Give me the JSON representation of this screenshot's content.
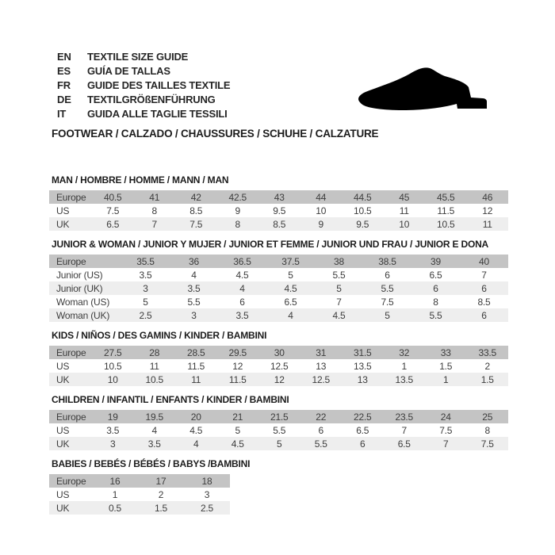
{
  "header": {
    "languages": [
      {
        "code": "EN",
        "text": "TEXTILE SIZE GUIDE"
      },
      {
        "code": "ES",
        "text": "GUÍA DE TALLAS"
      },
      {
        "code": "FR",
        "text": "GUIDE DES TAILLES TEXTILE"
      },
      {
        "code": "DE",
        "text": "TEXTILGRÖßENFÜHRUNG"
      },
      {
        "code": "IT",
        "text": "GUIDA ALLE TAGLIE TESSILI"
      }
    ],
    "category_line": "FOOTWEAR / CALZADO / CHAUSSURES / SCHUHE / CALZATURE",
    "icon": "shoe-icon"
  },
  "colors": {
    "header_row_bg": "#c4c4c4",
    "stripe_row_bg": "#eeeeee",
    "table_text": "#3d3d3d",
    "title_text": "#1c1c1c",
    "shoe": "#000000"
  },
  "tables": [
    {
      "title": "MAN / HOMBRE / HOMME / MANN / MAN",
      "header": {
        "label": "Europe",
        "values": [
          "40.5",
          "41",
          "42",
          "42.5",
          "43",
          "44",
          "44.5",
          "45",
          "45.5",
          "46"
        ]
      },
      "rows": [
        {
          "label": "US",
          "values": [
            "7.5",
            "8",
            "8.5",
            "9",
            "9.5",
            "10",
            "10.5",
            "11",
            "11.5",
            "12"
          ]
        },
        {
          "label": "UK",
          "values": [
            "6.5",
            "7",
            "7.5",
            "8",
            "8.5",
            "9",
            "9.5",
            "10",
            "10.5",
            "11"
          ]
        }
      ]
    },
    {
      "title": "JUNIOR & WOMAN / JUNIOR Y MUJER / JUNIOR ET FEMME / JUNIOR UND FRAU / JUNIOR E DONA",
      "header": {
        "label": "Europe",
        "values": [
          "35.5",
          "36",
          "36.5",
          "37.5",
          "38",
          "38.5",
          "39",
          "40"
        ]
      },
      "rows": [
        {
          "label": "Junior (US)",
          "values": [
            "3.5",
            "4",
            "4.5",
            "5",
            "5.5",
            "6",
            "6.5",
            "7"
          ]
        },
        {
          "label": "Junior (UK)",
          "values": [
            "3",
            "3.5",
            "4",
            "4.5",
            "5",
            "5.5",
            "6",
            "6"
          ]
        },
        {
          "label": "Woman (US)",
          "values": [
            "5",
            "5.5",
            "6",
            "6.5",
            "7",
            "7.5",
            "8",
            "8.5"
          ]
        },
        {
          "label": "Woman (UK)",
          "values": [
            "2.5",
            "3",
            "3.5",
            "4",
            "4.5",
            "5",
            "5.5",
            "6"
          ]
        }
      ]
    },
    {
      "title": "KIDS / NIÑOS / DES GAMINS / KINDER / BAMBINI",
      "header": {
        "label": "Europe",
        "values": [
          "27.5",
          "28",
          "28.5",
          "29.5",
          "30",
          "31",
          "31.5",
          "32",
          "33",
          "33.5"
        ]
      },
      "rows": [
        {
          "label": "US",
          "values": [
            "10.5",
            "11",
            "11.5",
            "12",
            "12.5",
            "13",
            "13.5",
            "1",
            "1.5",
            "2"
          ]
        },
        {
          "label": "UK",
          "values": [
            "10",
            "10.5",
            "11",
            "11.5",
            "12",
            "12.5",
            "13",
            "13.5",
            "1",
            "1.5"
          ]
        }
      ]
    },
    {
      "title": "CHILDREN / INFANTIL / ENFANTS / KINDER / BAMBINI",
      "header": {
        "label": "Europe",
        "values": [
          "19",
          "19.5",
          "20",
          "21",
          "21.5",
          "22",
          "22.5",
          "23.5",
          "24",
          "25"
        ]
      },
      "rows": [
        {
          "label": "US",
          "values": [
            "3.5",
            "4",
            "4.5",
            "5",
            "5.5",
            "6",
            "6.5",
            "7",
            "7.5",
            "8"
          ]
        },
        {
          "label": "UK",
          "values": [
            "3",
            "3.5",
            "4",
            "4.5",
            "5",
            "5.5",
            "6",
            "6.5",
            "7",
            "7.5"
          ]
        }
      ]
    },
    {
      "title": "BABIES / BEBÉS / BÉBÉS / BABYS /BAMBINI",
      "header": {
        "label": "Europe",
        "values": [
          "16",
          "17",
          "18"
        ]
      },
      "rows": [
        {
          "label": "US",
          "values": [
            "1",
            "2",
            "3"
          ]
        },
        {
          "label": "UK",
          "values": [
            "0.5",
            "1.5",
            "2.5"
          ]
        }
      ]
    }
  ]
}
